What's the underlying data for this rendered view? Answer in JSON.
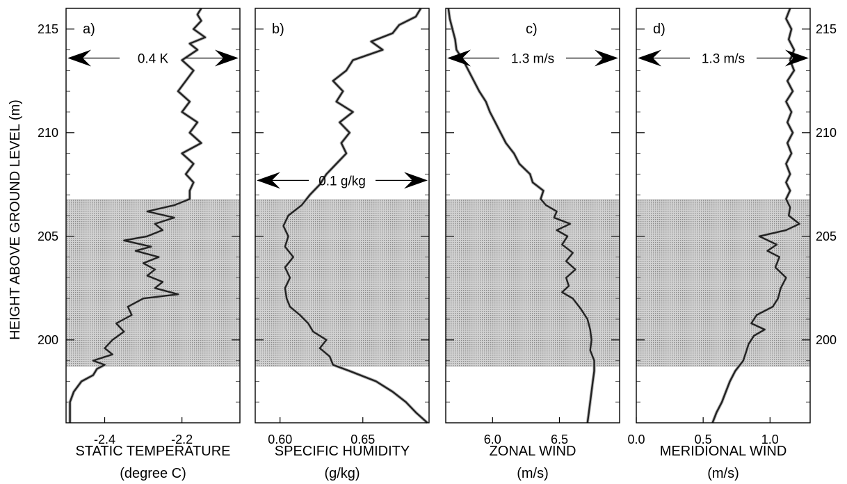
{
  "chart_data": {
    "type": "line",
    "ylabel": "HEIGHT ABOVE GROUND LEVEL  (m)",
    "ylim": [
      196,
      216
    ],
    "yticks": [
      200,
      205,
      210,
      215
    ],
    "shaded_height_range": [
      198.7,
      206.8
    ],
    "panels": [
      {
        "id": "a",
        "panel_label": "a)",
        "xlabel_line1": "STATIC TEMPERATURE",
        "xlabel_line2": "(degree C)",
        "xlim": [
          -2.5,
          -2.05
        ],
        "xticks": [
          -2.4,
          -2.2
        ],
        "xtick_labels": [
          "-2.4",
          "-2.2"
        ],
        "annotation": {
          "text": "0.4 K",
          "height": 213.6,
          "x_from": -2.5,
          "x_to": -2.05
        },
        "series": [
          {
            "heights": [
              196.0,
              196.5,
              197.0,
              197.5,
              198.0,
              198.3,
              198.6,
              198.8,
              199.0,
              199.3,
              199.6,
              200.0,
              200.4,
              200.8,
              201.2,
              201.6,
              202.0,
              202.2,
              202.5,
              202.8,
              203.1,
              203.4,
              203.7,
              204.0,
              204.3,
              204.5,
              204.8,
              205.0,
              205.3,
              205.6,
              205.9,
              206.2,
              206.5,
              206.8,
              207.2,
              207.6,
              208.0,
              208.5,
              209.0,
              209.5,
              210.0,
              210.5,
              211.0,
              211.5,
              212.0,
              212.5,
              213.0,
              213.5,
              214.0,
              214.3,
              214.6,
              215.0,
              215.4,
              215.7,
              216.0
            ],
            "values": [
              -2.49,
              -2.49,
              -2.49,
              -2.48,
              -2.46,
              -2.43,
              -2.42,
              -2.4,
              -2.43,
              -2.38,
              -2.4,
              -2.38,
              -2.35,
              -2.37,
              -2.33,
              -2.34,
              -2.3,
              -2.21,
              -2.27,
              -2.25,
              -2.29,
              -2.27,
              -2.3,
              -2.26,
              -2.32,
              -2.28,
              -2.35,
              -2.29,
              -2.25,
              -2.27,
              -2.22,
              -2.29,
              -2.22,
              -2.18,
              -2.18,
              -2.17,
              -2.19,
              -2.17,
              -2.2,
              -2.15,
              -2.18,
              -2.16,
              -2.2,
              -2.18,
              -2.21,
              -2.19,
              -2.17,
              -2.2,
              -2.16,
              -2.18,
              -2.14,
              -2.17,
              -2.15,
              -2.16,
              -2.15
            ]
          }
        ]
      },
      {
        "id": "b",
        "panel_label": "b)",
        "xlabel_line1": "SPECIFIC HUMIDITY",
        "xlabel_line2": "(g/kg)",
        "xlim": [
          0.585,
          0.69
        ],
        "xticks": [
          0.6,
          0.65
        ],
        "xtick_labels": [
          "0.60",
          "0.65"
        ],
        "annotation": {
          "text": "0.1 g/kg",
          "height": 207.7,
          "x_from": 0.585,
          "x_to": 0.69
        },
        "series": [
          {
            "heights": [
              196.0,
              196.5,
              197.0,
              197.5,
              198.0,
              198.5,
              198.8,
              199.2,
              199.6,
              200.0,
              200.4,
              200.8,
              201.2,
              201.6,
              202.0,
              202.5,
              203.0,
              203.5,
              204.0,
              204.5,
              205.0,
              205.5,
              206.0,
              206.5,
              207.0,
              207.5,
              208.0,
              208.5,
              209.0,
              209.5,
              210.0,
              210.5,
              211.0,
              211.5,
              212.0,
              212.5,
              213.0,
              213.5,
              214.0,
              214.4,
              214.8,
              215.2,
              215.6,
              216.0
            ],
            "values": [
              0.689,
              0.682,
              0.676,
              0.668,
              0.658,
              0.642,
              0.632,
              0.63,
              0.624,
              0.628,
              0.62,
              0.617,
              0.612,
              0.606,
              0.604,
              0.603,
              0.606,
              0.603,
              0.608,
              0.603,
              0.605,
              0.602,
              0.605,
              0.613,
              0.618,
              0.624,
              0.628,
              0.634,
              0.64,
              0.637,
              0.642,
              0.636,
              0.644,
              0.634,
              0.638,
              0.632,
              0.64,
              0.644,
              0.662,
              0.655,
              0.668,
              0.672,
              0.682,
              0.685
            ]
          }
        ]
      },
      {
        "id": "c",
        "panel_label": "c)",
        "xlabel_line1": "ZONAL WIND",
        "xlabel_line2": "(m/s)",
        "xlim": [
          5.65,
          6.95
        ],
        "xticks": [
          6.0,
          6.5
        ],
        "xtick_labels": [
          "6.0",
          "6.5"
        ],
        "annotation": {
          "text": "1.3 m/s",
          "height": 213.6,
          "x_from": 5.65,
          "x_to": 6.95
        },
        "series": [
          {
            "heights": [
              196.0,
              196.5,
              197.0,
              197.5,
              198.0,
              198.5,
              199.0,
              199.5,
              200.0,
              200.5,
              201.0,
              201.5,
              202.0,
              202.3,
              202.6,
              203.0,
              203.4,
              203.8,
              204.2,
              204.6,
              205.0,
              205.3,
              205.6,
              205.9,
              206.2,
              206.5,
              206.8,
              207.2,
              207.6,
              208.0,
              208.5,
              209.0,
              209.5,
              210.0,
              210.5,
              211.0,
              211.5,
              212.0,
              212.5,
              213.0,
              213.5,
              214.0,
              214.5,
              215.0,
              215.5,
              216.0
            ],
            "values": [
              6.71,
              6.72,
              6.73,
              6.74,
              6.75,
              6.76,
              6.76,
              6.73,
              6.74,
              6.73,
              6.71,
              6.66,
              6.6,
              6.52,
              6.57,
              6.55,
              6.62,
              6.55,
              6.6,
              6.52,
              6.56,
              6.48,
              6.58,
              6.46,
              6.48,
              6.4,
              6.36,
              6.38,
              6.3,
              6.28,
              6.2,
              6.16,
              6.1,
              6.06,
              6.02,
              5.98,
              5.95,
              5.9,
              5.86,
              5.82,
              5.78,
              5.73,
              5.72,
              5.7,
              5.68,
              5.67
            ]
          }
        ]
      },
      {
        "id": "d",
        "panel_label": "d)",
        "xlabel_line1": "MERIDIONAL WIND",
        "xlabel_line2": "(m/s)",
        "xlim": [
          0.0,
          1.3
        ],
        "xticks": [
          0.0,
          0.5,
          1.0
        ],
        "xtick_labels": [
          "0.0",
          "0.5",
          "1.0"
        ],
        "annotation": {
          "text": "1.3 m/s",
          "height": 213.6,
          "x_from": 0.0,
          "x_to": 1.3
        },
        "series": [
          {
            "heights": [
              196.0,
              196.5,
              197.0,
              197.5,
              198.0,
              198.5,
              199.0,
              199.4,
              199.8,
              200.2,
              200.5,
              200.8,
              201.2,
              201.6,
              202.0,
              202.5,
              203.0,
              203.5,
              204.0,
              204.3,
              204.6,
              205.0,
              205.3,
              205.6,
              206.0,
              206.4,
              206.8,
              207.2,
              207.6,
              208.0,
              208.5,
              209.0,
              209.5,
              210.0,
              210.5,
              211.0,
              211.5,
              212.0,
              212.5,
              213.0,
              213.5,
              214.0,
              214.5,
              215.0,
              215.5,
              216.0
            ],
            "values": [
              0.57,
              0.6,
              0.64,
              0.67,
              0.7,
              0.74,
              0.8,
              0.82,
              0.84,
              0.88,
              0.96,
              0.86,
              0.9,
              1.02,
              1.06,
              1.08,
              1.12,
              1.04,
              1.07,
              0.98,
              1.05,
              0.92,
              1.12,
              1.22,
              1.14,
              1.15,
              1.12,
              1.15,
              1.12,
              1.15,
              1.12,
              1.16,
              1.13,
              1.17,
              1.13,
              1.16,
              1.12,
              1.17,
              1.13,
              1.18,
              1.15,
              1.18,
              1.14,
              1.16,
              1.12,
              1.15
            ]
          }
        ]
      }
    ]
  }
}
